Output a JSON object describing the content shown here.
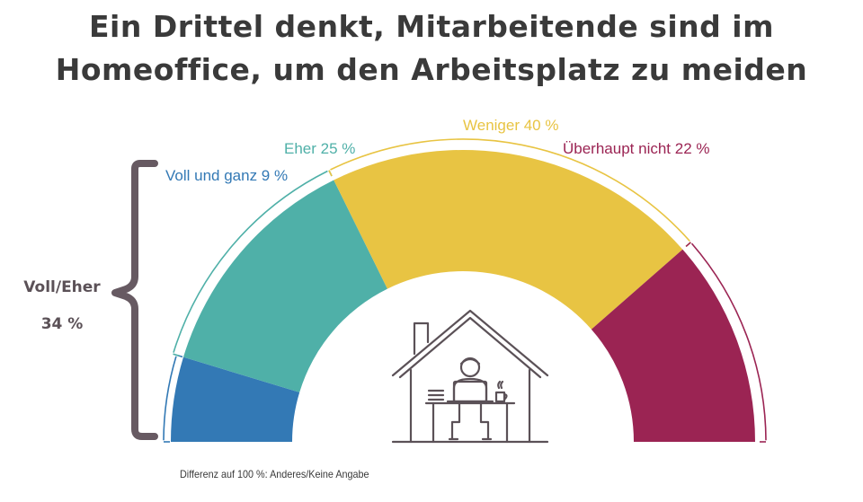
{
  "title_line1": "Ein Drittel denkt, Mitarbeitende sind im",
  "title_line2": "Homeoffice, um den Arbeitsplatz zu meiden",
  "footnote": "Differenz auf 100 %: Anderes/Keine Angabe",
  "brace": {
    "label": "Voll/Eher",
    "value": "34 %"
  },
  "chart_data": {
    "type": "pie",
    "style": "half-donut",
    "title": "Ein Drittel denkt, Mitarbeitende sind im Homeoffice, um den Arbeitsplatz zu meiden",
    "slices": [
      {
        "label": "Voll und ganz 9 %",
        "value": 9,
        "color": "#3379b5"
      },
      {
        "label": "Eher 25 %",
        "value": 25,
        "color": "#4fb0a8"
      },
      {
        "label": "Weniger 40 %",
        "value": 40,
        "color": "#e8c443"
      },
      {
        "label": "Überhaupt nicht 22 %",
        "value": 22,
        "color": "#9b2453"
      }
    ],
    "bracket_color": "#675a62",
    "icon": "home-office-icon"
  }
}
